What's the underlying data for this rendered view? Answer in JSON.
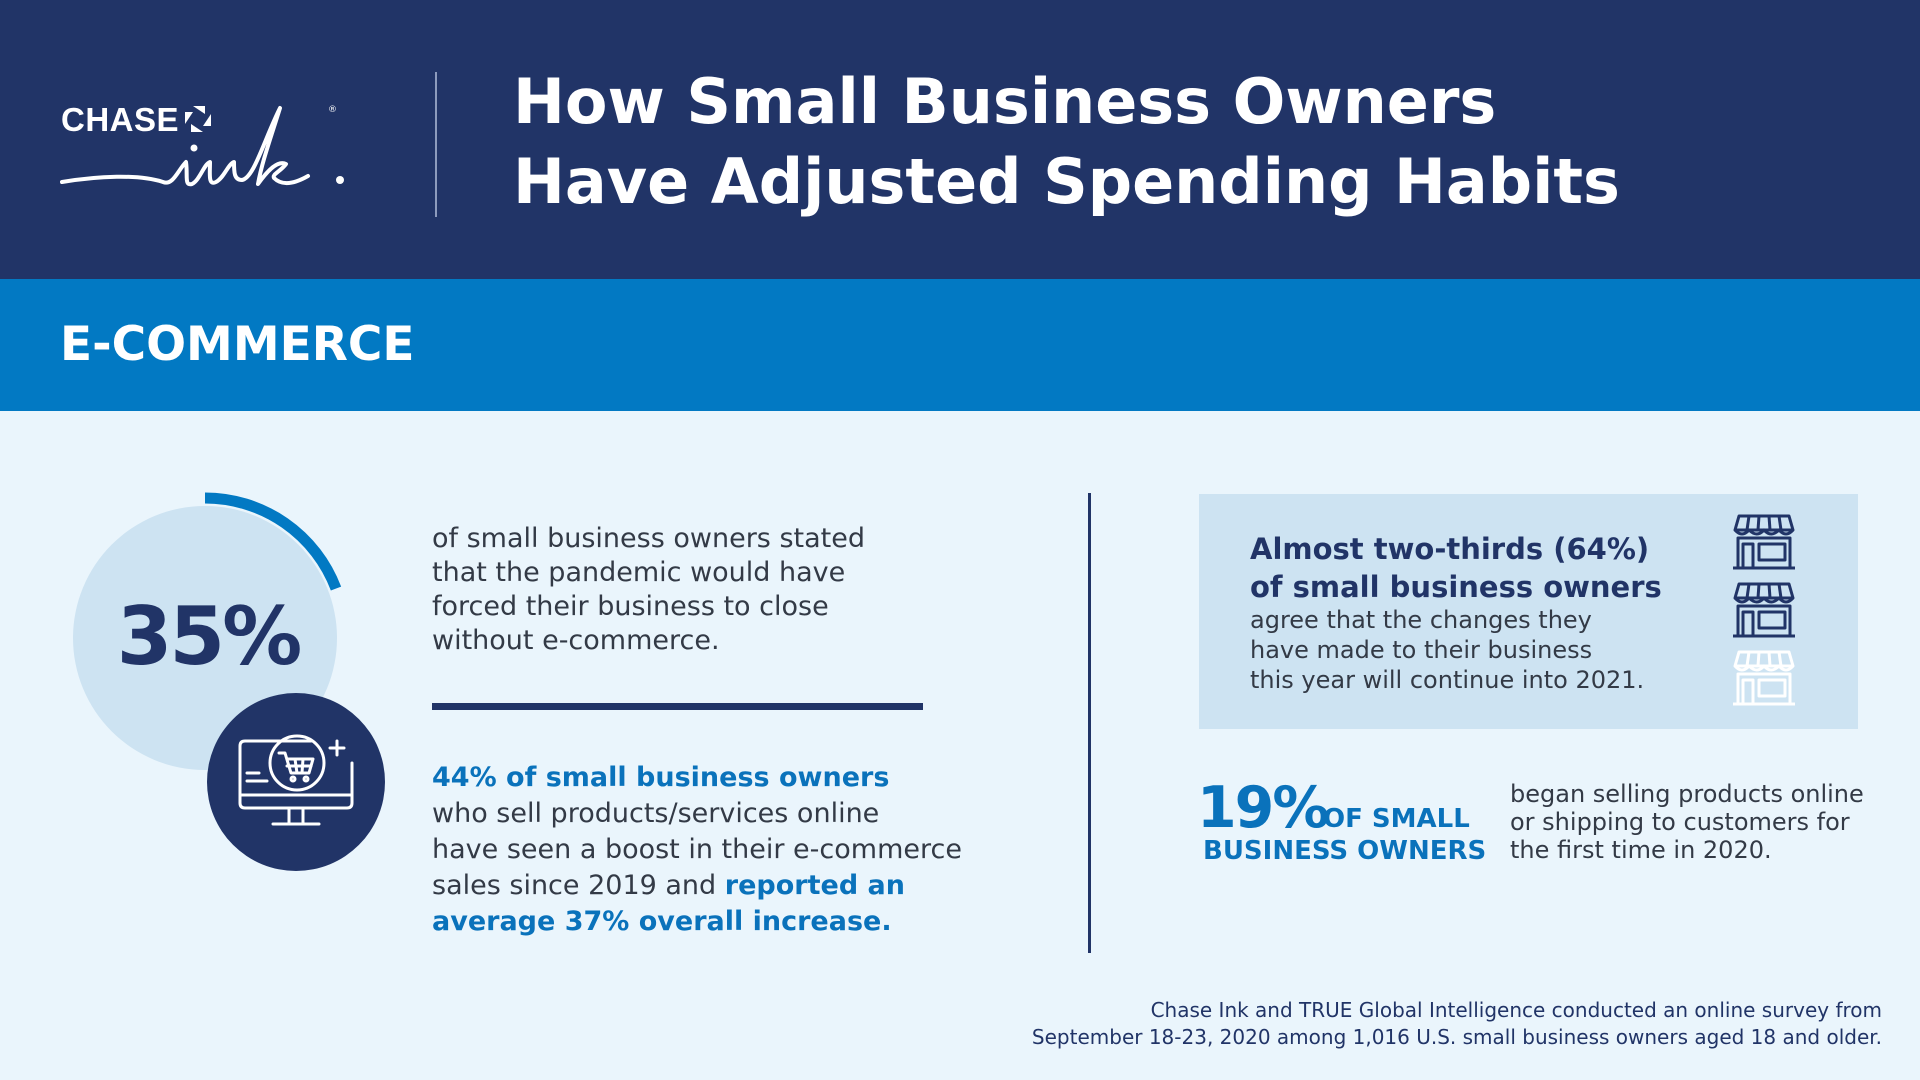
{
  "brand": {
    "name": "CHASE",
    "product": "ink",
    "registered_mark": "®"
  },
  "header": {
    "title_line1": "How Small Business Owners",
    "title_line2": "Have Adjusted Spending Habits"
  },
  "section": {
    "title": "E-COMMERCE"
  },
  "stat_close": {
    "value": "35%",
    "percent": 35,
    "text_lines": [
      "of small business owners stated",
      "that the pandemic would have",
      "forced their business to close",
      "without e-commerce."
    ],
    "icon": "monitor-shopping-cart-icon"
  },
  "stat_boost": {
    "highlight": "44% of small business owners",
    "line2": "who sell products/services online",
    "line3": "have seen a boost in their e-commerce",
    "line4_plain": "sales since 2019 and ",
    "line4_highlight": "reported an",
    "line5_highlight": "average 37% overall increase."
  },
  "stat_continue": {
    "head_line1": "Almost two-thirds (64%)",
    "head_line2": "of small business owners",
    "body_lines": [
      "agree that the changes they",
      "have made to their business",
      "this year will continue into 2021."
    ],
    "icon": "storefront-icon",
    "icon_count": 3,
    "filled_icons": 2
  },
  "stat_first_time": {
    "value": "19%",
    "label_line1": "OF SMALL",
    "label_line2": "BUSINESS OWNERS",
    "text_lines": [
      "began selling products online",
      "or shipping to customers for",
      "the first time in 2020."
    ]
  },
  "footnote": {
    "line1": "Chase Ink and TRUE Global Intelligence conducted an online survey from",
    "line2": "September 18-23, 2020 among 1,016 U.S. small business owners aged 18 and older."
  },
  "colors": {
    "navy": "#213467",
    "blue": "#0279c3",
    "highlight_blue": "#0a72bb",
    "light_bg": "#eaf5fc",
    "light_box": "#cde3f2"
  }
}
